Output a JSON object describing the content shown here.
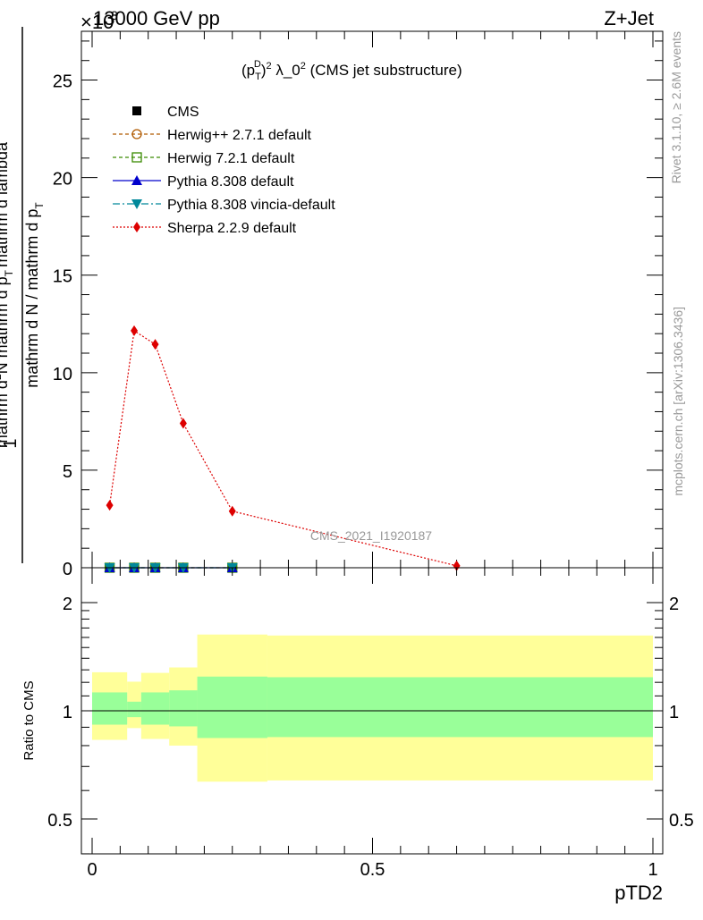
{
  "header": {
    "left": "13000 GeV pp",
    "right": "Z+Jet",
    "exponent": "×10",
    "exponent_power": "3"
  },
  "side_labels": {
    "rivet": "Rivet 3.1.10, ≥ 2.6M events",
    "mcplots": "mcplots.cern.ch [arXiv:1306.3436]"
  },
  "chart_data": [
    {
      "type": "line",
      "title": "(p_T^D)^2 λ_0^2 (CMS jet substructure)",
      "title_parts": {
        "p": "(p",
        "sub": "T",
        "sup": "D",
        "close": ")",
        "sup2": "2",
        "rest": " λ_0",
        "sup3": "2",
        "tail": " (CMS jet substructure)"
      },
      "ylabel": "1 / mathrm d N / mathrm d p_T mathrm d^2N / mathrm d p_T mathrm d lambda",
      "ylabel_parts": {
        "one": "1",
        "denom": "mathrm d N / mathrm d p",
        "denom_sub": "T",
        "num_a": "mathrm d",
        "num_sup": "2",
        "num_b": "N",
        "num_c": "mathrm d p",
        "num_sub": "T",
        "num_d": "mathrm d lambda"
      },
      "xlim": [
        0,
        1
      ],
      "ylim": [
        0,
        27.5
      ],
      "y_scale_note": "×10^3",
      "yticks": [
        0,
        5,
        10,
        15,
        20,
        25
      ],
      "ytick_labels": [
        "0",
        "5",
        "10",
        "15",
        "20",
        "25"
      ],
      "watermark": "CMS_2021_I1920187",
      "legend_position": "top-left",
      "series": [
        {
          "name": "CMS",
          "color": "#000000",
          "marker": "square",
          "x": [
            0.03125,
            0.075,
            0.1125,
            0.1625,
            0.25
          ],
          "values": [
            0,
            0,
            0,
            0,
            0
          ]
        },
        {
          "name": "Herwig++ 2.7.1 default",
          "color": "#b05a00",
          "marker": "circle-open",
          "x": [
            0.03125,
            0.075,
            0.1125,
            0.1625,
            0.25
          ],
          "values": [
            0,
            0,
            0,
            0,
            0
          ]
        },
        {
          "name": "Herwig 7.2.1 default",
          "color": "#3a8a00",
          "marker": "square-open",
          "x": [
            0.03125,
            0.075,
            0.1125,
            0.1625,
            0.25
          ],
          "values": [
            0,
            0,
            0,
            0,
            0
          ]
        },
        {
          "name": "Pythia 8.308 default",
          "color": "#0000cc",
          "marker": "triangle-up",
          "x": [
            0.03125,
            0.075,
            0.1125,
            0.1625,
            0.25
          ],
          "values": [
            0,
            0,
            0,
            0,
            0
          ]
        },
        {
          "name": "Pythia 8.308 vincia-default",
          "color": "#00889a",
          "marker": "triangle-down",
          "x": [
            0.03125,
            0.075,
            0.1125,
            0.1625,
            0.25
          ],
          "values": [
            0,
            0,
            0,
            0,
            0
          ]
        },
        {
          "name": "Sherpa 2.2.9 default",
          "color": "#dd0000",
          "marker": "diamond",
          "x": [
            0.03125,
            0.075,
            0.1125,
            0.1625,
            0.25,
            0.65
          ],
          "values": [
            3.2,
            12.15,
            11.45,
            7.4,
            2.9,
            0.1
          ]
        }
      ]
    },
    {
      "type": "area",
      "ylabel": "Ratio to CMS",
      "xlabel": "pTD2",
      "xlim": [
        0,
        1
      ],
      "ylim": [
        0.375,
        2.3
      ],
      "xticks": [
        0,
        0.5,
        1
      ],
      "xtick_labels": [
        "0",
        "0.5",
        "1"
      ],
      "yticks": [
        0.5,
        1,
        2
      ],
      "ytick_labels": [
        "0.5",
        "1",
        "2"
      ],
      "bins": [
        {
          "lo": 0.0,
          "hi": 0.0625,
          "outer": [
            0.83,
            1.28
          ],
          "inner": [
            0.915,
            1.125
          ]
        },
        {
          "lo": 0.0625,
          "hi": 0.0875,
          "outer": [
            0.895,
            1.205
          ],
          "inner": [
            0.96,
            1.06
          ]
        },
        {
          "lo": 0.0875,
          "hi": 0.1375,
          "outer": [
            0.835,
            1.275
          ],
          "inner": [
            0.915,
            1.125
          ]
        },
        {
          "lo": 0.1375,
          "hi": 0.1875,
          "outer": [
            0.8,
            1.32
          ],
          "inner": [
            0.905,
            1.14
          ]
        },
        {
          "lo": 0.1875,
          "hi": 0.3125,
          "outer": [
            0.635,
            1.63
          ],
          "inner": [
            0.84,
            1.245
          ]
        },
        {
          "lo": 0.3125,
          "hi": 1.0,
          "outer": [
            0.64,
            1.62
          ],
          "inner": [
            0.845,
            1.24
          ]
        }
      ]
    }
  ]
}
